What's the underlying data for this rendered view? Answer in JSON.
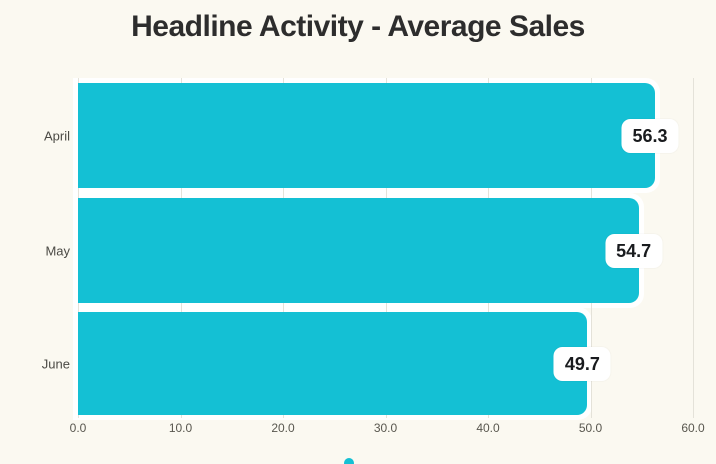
{
  "chart_data": {
    "type": "bar",
    "orientation": "horizontal",
    "title": "Headline Activity - Average Sales",
    "categories": [
      "April",
      "May",
      "June"
    ],
    "values": [
      56.3,
      54.7,
      49.7
    ],
    "value_labels": [
      "56.3",
      "54.7",
      "49.7"
    ],
    "x_ticks": [
      "0.0",
      "10.0",
      "20.0",
      "30.0",
      "40.0",
      "50.0",
      "60.0"
    ],
    "xlim": [
      0,
      60
    ],
    "xlabel": "",
    "ylabel": "",
    "grid": "vertical-on",
    "legend": "none",
    "data_label_style": "white-rounded-badge-at-bar-end",
    "colors": {
      "background": "#fbf9f1",
      "bar_fill": "#14c0d4",
      "bar_outline": "#ffffff",
      "gridline": "#e4e2d9",
      "title_text": "#2d2d2d",
      "category_text": "#4b4a45",
      "tick_text": "#59574f",
      "badge_background": "#ffffff",
      "badge_text": "#191b1e"
    }
  },
  "footer": {
    "brand_dot_color": "#14c0d4"
  }
}
